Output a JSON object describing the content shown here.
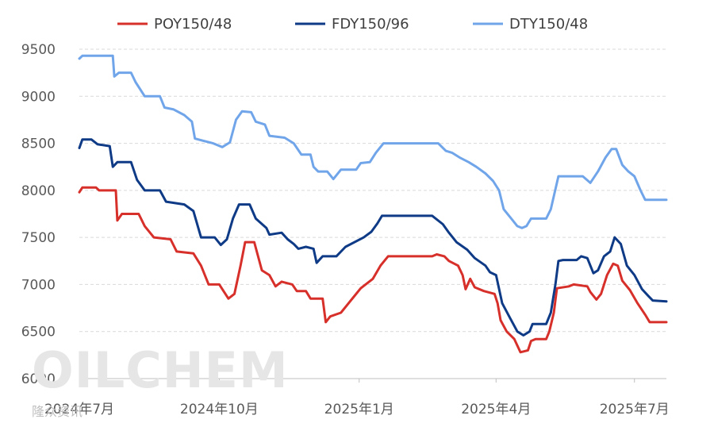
{
  "chart_data": {
    "type": "line",
    "title": "",
    "xlabel": "",
    "ylabel": "",
    "ylim": [
      6000,
      9500
    ],
    "yticks": [
      6000,
      6500,
      7000,
      7500,
      8000,
      8500,
      9000,
      9500
    ],
    "x_start": "2024-07-01",
    "x_end": "2025-07-22",
    "xtick_labels": [
      {
        "date": "2024-07-01",
        "label": "2024年7月"
      },
      {
        "date": "2024-10-01",
        "label": "2024年10月"
      },
      {
        "date": "2025-01-01",
        "label": "2025年1月"
      },
      {
        "date": "2025-04-01",
        "label": "2025年4月"
      },
      {
        "date": "2025-07-01",
        "label": "2025年7月"
      }
    ],
    "grid": "horizontal-dashed",
    "legend": "top-center",
    "series": [
      {
        "name": "POY150/48",
        "color": "#d7302b",
        "points": [
          [
            "2024-07-01",
            7980
          ],
          [
            "2024-07-03",
            8030
          ],
          [
            "2024-07-12",
            8030
          ],
          [
            "2024-07-14",
            8000
          ],
          [
            "2024-07-25",
            8000
          ],
          [
            "2024-07-26",
            7680
          ],
          [
            "2024-07-29",
            7750
          ],
          [
            "2024-08-09",
            7750
          ],
          [
            "2024-08-13",
            7620
          ],
          [
            "2024-08-19",
            7500
          ],
          [
            "2024-08-30",
            7480
          ],
          [
            "2024-09-03",
            7350
          ],
          [
            "2024-09-14",
            7330
          ],
          [
            "2024-09-19",
            7200
          ],
          [
            "2024-09-24",
            7000
          ],
          [
            "2024-10-01",
            7000
          ],
          [
            "2024-10-07",
            6850
          ],
          [
            "2024-10-11",
            6900
          ],
          [
            "2024-10-15",
            7200
          ],
          [
            "2024-10-18",
            7450
          ],
          [
            "2024-10-24",
            7450
          ],
          [
            "2024-10-29",
            7150
          ],
          [
            "2024-11-03",
            7100
          ],
          [
            "2024-11-07",
            6980
          ],
          [
            "2024-11-11",
            7030
          ],
          [
            "2024-11-18",
            7000
          ],
          [
            "2024-11-21",
            6930
          ],
          [
            "2024-11-27",
            6930
          ],
          [
            "2024-11-30",
            6850
          ],
          [
            "2024-12-08",
            6850
          ],
          [
            "2024-12-10",
            6600
          ],
          [
            "2024-12-13",
            6660
          ],
          [
            "2024-12-20",
            6700
          ],
          [
            "2024-12-28",
            6860
          ],
          [
            "2025-01-02",
            6960
          ],
          [
            "2025-01-10",
            7060
          ],
          [
            "2025-01-15",
            7200
          ],
          [
            "2025-01-20",
            7300
          ],
          [
            "2025-02-18",
            7300
          ],
          [
            "2025-02-21",
            7320
          ],
          [
            "2025-02-26",
            7300
          ],
          [
            "2025-03-01",
            7250
          ],
          [
            "2025-03-07",
            7200
          ],
          [
            "2025-03-10",
            7100
          ],
          [
            "2025-03-12",
            6950
          ],
          [
            "2025-03-15",
            7060
          ],
          [
            "2025-03-18",
            6970
          ],
          [
            "2025-03-24",
            6930
          ],
          [
            "2025-03-31",
            6900
          ],
          [
            "2025-04-02",
            6800
          ],
          [
            "2025-04-04",
            6620
          ],
          [
            "2025-04-08",
            6500
          ],
          [
            "2025-04-13",
            6420
          ],
          [
            "2025-04-17",
            6280
          ],
          [
            "2025-04-22",
            6300
          ],
          [
            "2025-04-24",
            6400
          ],
          [
            "2025-04-27",
            6420
          ],
          [
            "2025-05-04",
            6420
          ],
          [
            "2025-05-06",
            6500
          ],
          [
            "2025-05-09",
            6700
          ],
          [
            "2025-05-11",
            6960
          ],
          [
            "2025-05-19",
            6980
          ],
          [
            "2025-05-22",
            7000
          ],
          [
            "2025-05-31",
            6980
          ],
          [
            "2025-06-02",
            6920
          ],
          [
            "2025-06-06",
            6840
          ],
          [
            "2025-06-09",
            6900
          ],
          [
            "2025-06-13",
            7100
          ],
          [
            "2025-06-17",
            7220
          ],
          [
            "2025-06-20",
            7200
          ],
          [
            "2025-06-23",
            7040
          ],
          [
            "2025-06-28",
            6940
          ],
          [
            "2025-07-03",
            6800
          ],
          [
            "2025-07-08",
            6680
          ],
          [
            "2025-07-11",
            6600
          ],
          [
            "2025-07-22",
            6600
          ]
        ]
      },
      {
        "name": "FDY150/96",
        "color": "#0e3a86",
        "points": [
          [
            "2024-07-01",
            8450
          ],
          [
            "2024-07-03",
            8540
          ],
          [
            "2024-07-09",
            8540
          ],
          [
            "2024-07-13",
            8490
          ],
          [
            "2024-07-21",
            8470
          ],
          [
            "2024-07-23",
            8250
          ],
          [
            "2024-07-26",
            8300
          ],
          [
            "2024-08-04",
            8300
          ],
          [
            "2024-08-08",
            8110
          ],
          [
            "2024-08-13",
            8000
          ],
          [
            "2024-08-23",
            8000
          ],
          [
            "2024-08-27",
            7880
          ],
          [
            "2024-09-08",
            7850
          ],
          [
            "2024-09-14",
            7780
          ],
          [
            "2024-09-19",
            7500
          ],
          [
            "2024-09-28",
            7500
          ],
          [
            "2024-10-02",
            7420
          ],
          [
            "2024-10-06",
            7480
          ],
          [
            "2024-10-10",
            7700
          ],
          [
            "2024-10-14",
            7850
          ],
          [
            "2024-10-21",
            7850
          ],
          [
            "2024-10-25",
            7700
          ],
          [
            "2024-11-01",
            7600
          ],
          [
            "2024-11-03",
            7530
          ],
          [
            "2024-11-11",
            7550
          ],
          [
            "2024-11-15",
            7480
          ],
          [
            "2024-11-19",
            7430
          ],
          [
            "2024-11-22",
            7380
          ],
          [
            "2024-11-27",
            7400
          ],
          [
            "2024-12-02",
            7380
          ],
          [
            "2024-12-04",
            7230
          ],
          [
            "2024-12-08",
            7300
          ],
          [
            "2024-12-17",
            7300
          ],
          [
            "2024-12-23",
            7400
          ],
          [
            "2025-01-04",
            7500
          ],
          [
            "2025-01-09",
            7560
          ],
          [
            "2025-01-13",
            7650
          ],
          [
            "2025-01-16",
            7730
          ],
          [
            "2025-02-18",
            7730
          ],
          [
            "2025-02-25",
            7640
          ],
          [
            "2025-03-01",
            7550
          ],
          [
            "2025-03-06",
            7450
          ],
          [
            "2025-03-13",
            7370
          ],
          [
            "2025-03-18",
            7280
          ],
          [
            "2025-03-25",
            7200
          ],
          [
            "2025-03-28",
            7130
          ],
          [
            "2025-04-01",
            7100
          ],
          [
            "2025-04-05",
            6800
          ],
          [
            "2025-04-10",
            6650
          ],
          [
            "2025-04-15",
            6500
          ],
          [
            "2025-04-19",
            6460
          ],
          [
            "2025-04-23",
            6500
          ],
          [
            "2025-04-25",
            6580
          ],
          [
            "2025-05-04",
            6580
          ],
          [
            "2025-05-07",
            6700
          ],
          [
            "2025-05-10",
            7000
          ],
          [
            "2025-05-12",
            7250
          ],
          [
            "2025-05-15",
            7260
          ],
          [
            "2025-05-24",
            7260
          ],
          [
            "2025-05-27",
            7300
          ],
          [
            "2025-05-31",
            7280
          ],
          [
            "2025-06-04",
            7120
          ],
          [
            "2025-06-07",
            7150
          ],
          [
            "2025-06-11",
            7300
          ],
          [
            "2025-06-15",
            7350
          ],
          [
            "2025-06-18",
            7500
          ],
          [
            "2025-06-22",
            7430
          ],
          [
            "2025-06-26",
            7200
          ],
          [
            "2025-07-01",
            7100
          ],
          [
            "2025-07-06",
            6950
          ],
          [
            "2025-07-10",
            6880
          ],
          [
            "2025-07-13",
            6830
          ],
          [
            "2025-07-22",
            6820
          ]
        ]
      },
      {
        "name": "DTY150/48",
        "color": "#71a5ea",
        "points": [
          [
            "2024-07-01",
            9400
          ],
          [
            "2024-07-03",
            9430
          ],
          [
            "2024-07-23",
            9430
          ],
          [
            "2024-07-24",
            9210
          ],
          [
            "2024-07-27",
            9250
          ],
          [
            "2024-08-04",
            9250
          ],
          [
            "2024-08-07",
            9150
          ],
          [
            "2024-08-13",
            9000
          ],
          [
            "2024-08-23",
            9000
          ],
          [
            "2024-08-26",
            8880
          ],
          [
            "2024-09-01",
            8860
          ],
          [
            "2024-09-08",
            8800
          ],
          [
            "2024-09-13",
            8730
          ],
          [
            "2024-09-15",
            8550
          ],
          [
            "2024-09-27",
            8500
          ],
          [
            "2024-10-03",
            8460
          ],
          [
            "2024-10-08",
            8510
          ],
          [
            "2024-10-12",
            8750
          ],
          [
            "2024-10-16",
            8840
          ],
          [
            "2024-10-22",
            8830
          ],
          [
            "2024-10-25",
            8730
          ],
          [
            "2024-10-31",
            8700
          ],
          [
            "2024-11-03",
            8580
          ],
          [
            "2024-11-13",
            8560
          ],
          [
            "2024-11-19",
            8500
          ],
          [
            "2024-11-24",
            8380
          ],
          [
            "2024-11-30",
            8380
          ],
          [
            "2024-12-02",
            8250
          ],
          [
            "2024-12-05",
            8200
          ],
          [
            "2024-12-11",
            8200
          ],
          [
            "2024-12-15",
            8120
          ],
          [
            "2024-12-20",
            8220
          ],
          [
            "2024-12-30",
            8220
          ],
          [
            "2025-01-02",
            8290
          ],
          [
            "2025-01-08",
            8300
          ],
          [
            "2025-01-12",
            8400
          ],
          [
            "2025-01-17",
            8500
          ],
          [
            "2025-02-22",
            8500
          ],
          [
            "2025-02-27",
            8420
          ],
          [
            "2025-03-03",
            8400
          ],
          [
            "2025-03-08",
            8350
          ],
          [
            "2025-03-14",
            8300
          ],
          [
            "2025-03-19",
            8250
          ],
          [
            "2025-03-25",
            8180
          ],
          [
            "2025-03-30",
            8100
          ],
          [
            "2025-04-03",
            8000
          ],
          [
            "2025-04-06",
            7800
          ],
          [
            "2025-04-11",
            7700
          ],
          [
            "2025-04-15",
            7620
          ],
          [
            "2025-04-18",
            7600
          ],
          [
            "2025-04-21",
            7620
          ],
          [
            "2025-04-24",
            7700
          ],
          [
            "2025-05-04",
            7700
          ],
          [
            "2025-05-07",
            7800
          ],
          [
            "2025-05-12",
            8150
          ],
          [
            "2025-05-28",
            8150
          ],
          [
            "2025-06-02",
            8080
          ],
          [
            "2025-06-07",
            8200
          ],
          [
            "2025-06-12",
            8350
          ],
          [
            "2025-06-16",
            8440
          ],
          [
            "2025-06-19",
            8440
          ],
          [
            "2025-06-23",
            8270
          ],
          [
            "2025-06-27",
            8200
          ],
          [
            "2025-07-01",
            8150
          ],
          [
            "2025-07-05",
            8000
          ],
          [
            "2025-07-08",
            7900
          ],
          [
            "2025-07-22",
            7900
          ]
        ]
      }
    ]
  },
  "watermark": {
    "main": "OILCHEM",
    "sub": "隆众资讯"
  }
}
